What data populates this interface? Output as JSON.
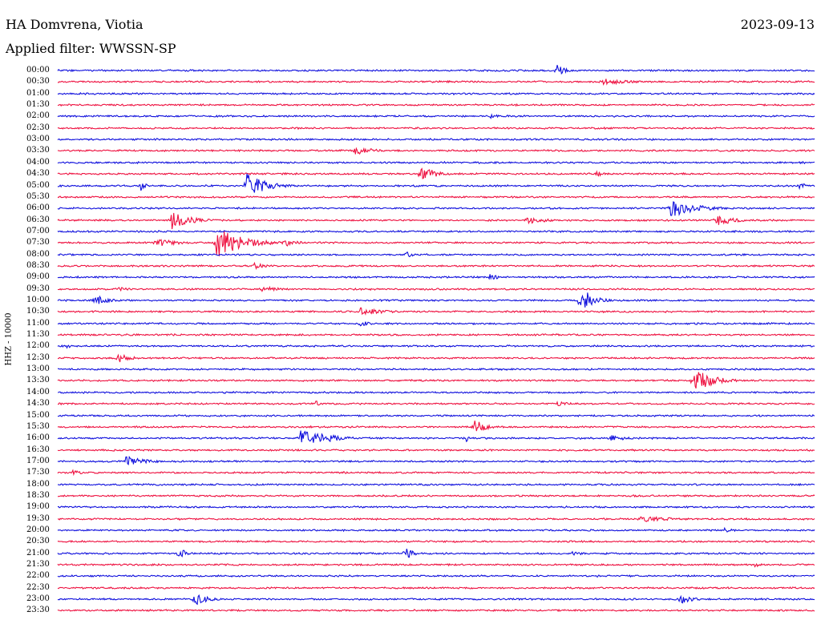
{
  "header": {
    "station": "HA Domvrena, Viotia",
    "date": "2023-09-13",
    "filter": "Applied filter: WWSSN-SP"
  },
  "channel_label": "HHZ - 10000",
  "colors": {
    "blue": "#1010dd",
    "red": "#ee1140"
  },
  "rows": [
    {
      "time": "00:00",
      "color": "blue",
      "events": [
        {
          "t": 0.66,
          "a": 8,
          "d": 0.012
        }
      ]
    },
    {
      "time": "00:30",
      "color": "red",
      "events": [
        {
          "t": 0.72,
          "a": 4,
          "d": 0.05
        }
      ]
    },
    {
      "time": "01:00",
      "color": "blue",
      "events": []
    },
    {
      "time": "01:30",
      "color": "red",
      "events": []
    },
    {
      "time": "02:00",
      "color": "blue",
      "events": [
        {
          "t": 0.57,
          "a": 3,
          "d": 0.02
        }
      ]
    },
    {
      "time": "02:30",
      "color": "red",
      "events": []
    },
    {
      "time": "03:00",
      "color": "blue",
      "events": []
    },
    {
      "time": "03:30",
      "color": "red",
      "events": [
        {
          "t": 0.39,
          "a": 6,
          "d": 0.03
        }
      ]
    },
    {
      "time": "04:00",
      "color": "blue",
      "events": [
        {
          "t": 0.98,
          "a": 3,
          "d": 0.01
        }
      ]
    },
    {
      "time": "04:30",
      "color": "red",
      "events": [
        {
          "t": 0.48,
          "a": 10,
          "d": 0.025
        },
        {
          "t": 0.71,
          "a": 4,
          "d": 0.015
        }
      ]
    },
    {
      "time": "05:00",
      "color": "blue",
      "events": [
        {
          "t": 0.25,
          "a": 16,
          "d": 0.03
        },
        {
          "t": 0.11,
          "a": 6,
          "d": 0.01
        },
        {
          "t": 0.98,
          "a": 5,
          "d": 0.01
        }
      ]
    },
    {
      "time": "05:30",
      "color": "red",
      "events": []
    },
    {
      "time": "06:00",
      "color": "blue",
      "events": [
        {
          "t": 0.81,
          "a": 12,
          "d": 0.04
        }
      ]
    },
    {
      "time": "06:30",
      "color": "red",
      "events": [
        {
          "t": 0.15,
          "a": 12,
          "d": 0.03
        },
        {
          "t": 0.87,
          "a": 7,
          "d": 0.03
        },
        {
          "t": 0.62,
          "a": 5,
          "d": 0.03
        }
      ]
    },
    {
      "time": "07:00",
      "color": "blue",
      "events": []
    },
    {
      "time": "07:30",
      "color": "red",
      "events": [
        {
          "t": 0.21,
          "a": 20,
          "d": 0.04
        },
        {
          "t": 0.13,
          "a": 6,
          "d": 0.03
        },
        {
          "t": 0.3,
          "a": 6,
          "d": 0.02
        }
      ]
    },
    {
      "time": "08:00",
      "color": "blue",
      "events": [
        {
          "t": 0.46,
          "a": 5,
          "d": 0.01
        }
      ]
    },
    {
      "time": "08:30",
      "color": "red",
      "events": [
        {
          "t": 0.26,
          "a": 4,
          "d": 0.02
        }
      ]
    },
    {
      "time": "09:00",
      "color": "blue",
      "events": [
        {
          "t": 0.57,
          "a": 4,
          "d": 0.02
        }
      ]
    },
    {
      "time": "09:30",
      "color": "red",
      "events": [
        {
          "t": 0.27,
          "a": 4,
          "d": 0.03
        },
        {
          "t": 0.08,
          "a": 3,
          "d": 0.02
        }
      ]
    },
    {
      "time": "10:00",
      "color": "blue",
      "events": [
        {
          "t": 0.69,
          "a": 18,
          "d": 0.02
        },
        {
          "t": 0.05,
          "a": 7,
          "d": 0.02
        }
      ]
    },
    {
      "time": "10:30",
      "color": "red",
      "events": [
        {
          "t": 0.4,
          "a": 5,
          "d": 0.04
        }
      ]
    },
    {
      "time": "11:00",
      "color": "blue",
      "events": [
        {
          "t": 0.4,
          "a": 6,
          "d": 0.01
        }
      ]
    },
    {
      "time": "11:30",
      "color": "red",
      "events": []
    },
    {
      "time": "12:00",
      "color": "blue",
      "events": [
        {
          "t": 0.01,
          "a": 4,
          "d": 0.01
        }
      ]
    },
    {
      "time": "12:30",
      "color": "red",
      "events": [
        {
          "t": 0.08,
          "a": 6,
          "d": 0.02
        }
      ]
    },
    {
      "time": "13:00",
      "color": "blue",
      "events": []
    },
    {
      "time": "13:30",
      "color": "red",
      "events": [
        {
          "t": 0.84,
          "a": 16,
          "d": 0.03
        }
      ]
    },
    {
      "time": "14:00",
      "color": "blue",
      "events": []
    },
    {
      "time": "14:30",
      "color": "red",
      "events": [
        {
          "t": 0.34,
          "a": 6,
          "d": 0.005
        },
        {
          "t": 0.66,
          "a": 3,
          "d": 0.03
        }
      ]
    },
    {
      "time": "15:00",
      "color": "blue",
      "events": []
    },
    {
      "time": "15:30",
      "color": "red",
      "events": [
        {
          "t": 0.55,
          "a": 12,
          "d": 0.015
        }
      ]
    },
    {
      "time": "16:00",
      "color": "blue",
      "events": [
        {
          "t": 0.32,
          "a": 14,
          "d": 0.04
        },
        {
          "t": 0.73,
          "a": 4,
          "d": 0.03
        },
        {
          "t": 0.54,
          "a": 5,
          "d": 0.005
        }
      ]
    },
    {
      "time": "16:30",
      "color": "red",
      "events": []
    },
    {
      "time": "17:00",
      "color": "blue",
      "events": [
        {
          "t": 0.09,
          "a": 7,
          "d": 0.03
        }
      ]
    },
    {
      "time": "17:30",
      "color": "red",
      "events": [
        {
          "t": 0.02,
          "a": 3,
          "d": 0.03
        }
      ]
    },
    {
      "time": "18:00",
      "color": "blue",
      "events": []
    },
    {
      "time": "18:30",
      "color": "red",
      "events": []
    },
    {
      "time": "19:00",
      "color": "blue",
      "events": []
    },
    {
      "time": "19:30",
      "color": "red",
      "events": [
        {
          "t": 0.77,
          "a": 4,
          "d": 0.06
        }
      ]
    },
    {
      "time": "20:00",
      "color": "blue",
      "events": [
        {
          "t": 0.88,
          "a": 3,
          "d": 0.02
        }
      ]
    },
    {
      "time": "20:30",
      "color": "red",
      "events": []
    },
    {
      "time": "21:00",
      "color": "blue",
      "events": [
        {
          "t": 0.16,
          "a": 9,
          "d": 0.01
        },
        {
          "t": 0.46,
          "a": 9,
          "d": 0.01
        },
        {
          "t": 0.68,
          "a": 3,
          "d": 0.02
        }
      ]
    },
    {
      "time": "21:30",
      "color": "red",
      "events": [
        {
          "t": 0.92,
          "a": 3,
          "d": 0.02
        }
      ]
    },
    {
      "time": "22:00",
      "color": "blue",
      "events": []
    },
    {
      "time": "22:30",
      "color": "red",
      "events": [
        {
          "t": 0.49,
          "a": 2,
          "d": 0.01
        }
      ]
    },
    {
      "time": "23:00",
      "color": "blue",
      "events": [
        {
          "t": 0.18,
          "a": 9,
          "d": 0.02
        },
        {
          "t": 0.82,
          "a": 7,
          "d": 0.02
        }
      ]
    },
    {
      "time": "23:30",
      "color": "red",
      "events": []
    }
  ]
}
